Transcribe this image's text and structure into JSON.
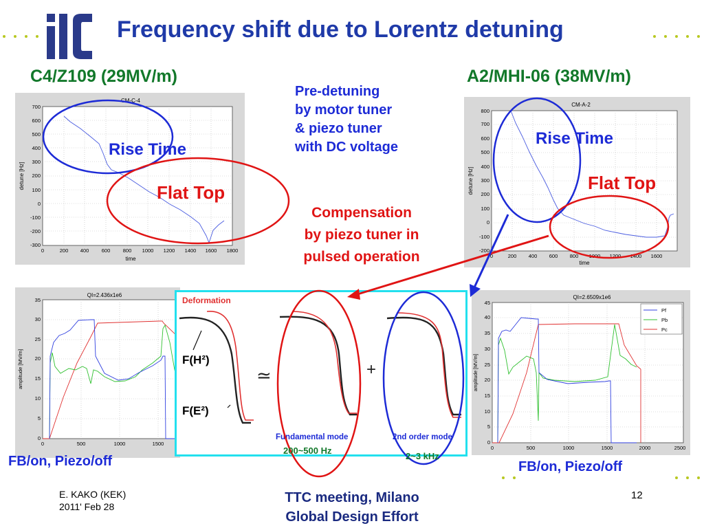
{
  "slide": {
    "title": "Frequency shift due to Lorentz detuning",
    "logo_text": "ilc",
    "page_number": "12"
  },
  "left": {
    "heading": "C4/Z109 (29MV/m)",
    "rise_label": "Rise Time",
    "flat_label": "Flat Top",
    "fb_label": "FB/on,  Piezo/off",
    "top_plot": {
      "title": "CM-C-4",
      "xlabel": "time",
      "ylabel": "detune [Hz]",
      "xticks": [
        "0",
        "200",
        "400",
        "600",
        "800",
        "1000",
        "1200",
        "1400",
        "1600",
        "1800"
      ],
      "yticks": [
        "-300",
        "-200",
        "-100",
        "0",
        "100",
        "200",
        "300",
        "400",
        "500",
        "600",
        "700"
      ]
    },
    "bottom_plot": {
      "title": "QI=2.436x1e6",
      "ylabel": "amplitude [MV/m]",
      "xticks": [
        "0",
        "500",
        "1000",
        "1500"
      ],
      "yticks": [
        "0",
        "5",
        "10",
        "15",
        "20",
        "25",
        "30",
        "35"
      ]
    }
  },
  "right": {
    "heading": "A2/MHI-06 (38MV/m)",
    "rise_label": "Rise Time",
    "flat_label": "Flat Top",
    "fb_label": "FB/on,  Piezo/off",
    "top_plot": {
      "title": "CM-A-2",
      "xlabel": "time",
      "ylabel": "detune [Hz]",
      "xticks": [
        "0",
        "200",
        "400",
        "600",
        "800",
        "1000",
        "1200",
        "1400",
        "1600"
      ],
      "yticks": [
        "-200",
        "-100",
        "0",
        "100",
        "200",
        "300",
        "400",
        "500",
        "600",
        "700",
        "800"
      ]
    },
    "bottom_plot": {
      "title": "QI=2.6509x1e6",
      "ylabel": "amplitude [MV/m]",
      "xticks": [
        "0",
        "500",
        "1000",
        "1500",
        "2000",
        "2500"
      ],
      "yticks": [
        "0",
        "5",
        "10",
        "15",
        "20",
        "25",
        "30",
        "35",
        "40",
        "45"
      ],
      "legend": [
        "Pf",
        "Pb",
        "Pc"
      ]
    }
  },
  "center": {
    "pre_detuning": [
      "Pre-detuning",
      "by motor tuner",
      "& piezo tuner",
      "with DC voltage"
    ],
    "compensation": [
      "Compensation",
      "by piezo tuner in",
      "pulsed operation"
    ]
  },
  "inset": {
    "deformation": "Deformation",
    "f_h2": "F(H²)",
    "f_e2": "F(E²)",
    "approx": "≃",
    "plus": "+",
    "fundamental": "Fundamental mode",
    "second_order": "2nd order mode",
    "freq1": "200~500 Hz",
    "freq2": "2~3 kHz"
  },
  "footer": {
    "author": "E. KAKO (KEK)",
    "date": "2011' Feb 28",
    "meeting": "TTC meeting, Milano",
    "effort": "Global Design Effort"
  },
  "colors": {
    "title_blue": "#1f3aa8",
    "heading_green": "#12782a",
    "annotation_red": "#e01414",
    "annotation_blue": "#1d2bd6",
    "inset_border": "#22e0ee"
  }
}
